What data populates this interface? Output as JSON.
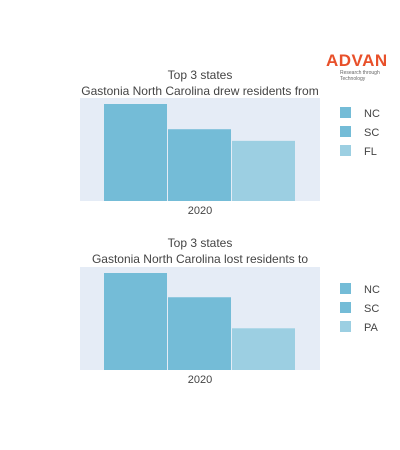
{
  "logo": {
    "brand": "ADVAN",
    "tagline": "Research through Technology"
  },
  "colors": {
    "plot_bg": "#e5ecf6",
    "bar": "#74bcd7",
    "bar_light": "#9ccfe2",
    "brand": "#e8502a"
  },
  "chart_data": [
    {
      "type": "bar",
      "title_line1": "Top 3 states",
      "title_line2": "Gastonia North Carolina drew residents from",
      "categories": [
        "2020"
      ],
      "ylim": [
        0,
        1
      ],
      "series": [
        {
          "name": "NC",
          "values": [
            1.0
          ],
          "color": "#74bcd7"
        },
        {
          "name": "SC",
          "values": [
            0.74
          ],
          "color": "#74bcd7"
        },
        {
          "name": "FL",
          "values": [
            0.62
          ],
          "color": "#9ccfe2"
        }
      ],
      "legend": "right",
      "grid": false
    },
    {
      "type": "bar",
      "title_line1": "Top 3 states",
      "title_line2": "Gastonia North Carolina lost residents to",
      "categories": [
        "2020"
      ],
      "ylim": [
        0,
        1
      ],
      "series": [
        {
          "name": "NC",
          "values": [
            1.0
          ],
          "color": "#74bcd7"
        },
        {
          "name": "SC",
          "values": [
            0.75
          ],
          "color": "#74bcd7"
        },
        {
          "name": "PA",
          "values": [
            0.43
          ],
          "color": "#9ccfe2"
        }
      ],
      "legend": "right",
      "grid": false
    }
  ]
}
